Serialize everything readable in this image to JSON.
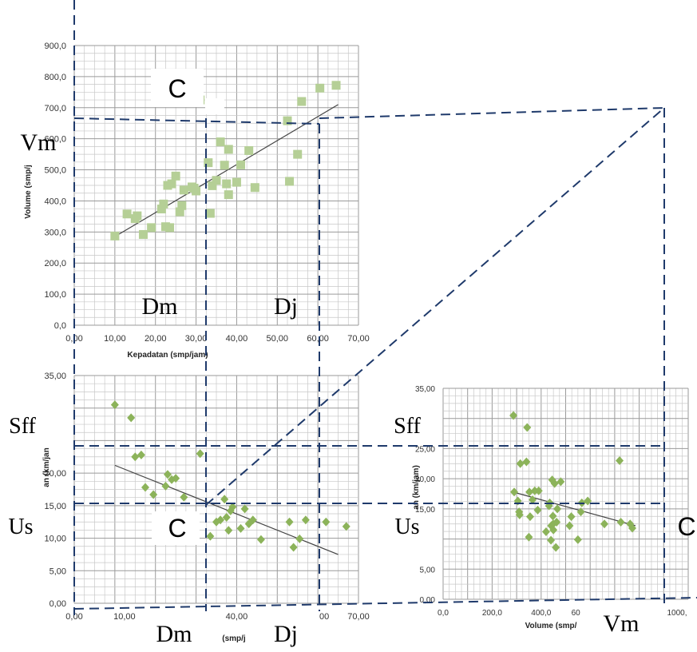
{
  "colors": {
    "grid": "#c8c8c8",
    "frame": "#9a9a9a",
    "guide": "#1f3a6b",
    "vol_marker": "#b5cf96",
    "speed_marker": "#8cb35a",
    "trend": "#444444",
    "label_bg": "#ffffff"
  },
  "chart_data": [
    {
      "type": "scatter",
      "name": "volume-density",
      "xlabel": "Kepadatan (smp/jam)",
      "ylabel": "Volume (smp/j",
      "xlim": [
        0,
        70
      ],
      "ylim": [
        0,
        900
      ],
      "xticks": [
        "0,00",
        "10,00",
        "20,00",
        "30,00",
        "40,00",
        "50,00",
        "60,00",
        "70,00"
      ],
      "yticks": [
        "0,0",
        "100,0",
        "200,0",
        "300,0",
        "400,0",
        "500,0",
        "600,0",
        "700,0",
        "800,0",
        "900,0"
      ],
      "trend": [
        [
          10,
          285
        ],
        [
          65,
          710
        ]
      ],
      "points": [
        [
          10,
          287
        ],
        [
          13,
          358
        ],
        [
          15,
          343
        ],
        [
          15.5,
          352
        ],
        [
          17,
          292
        ],
        [
          19,
          314
        ],
        [
          21.5,
          374
        ],
        [
          22,
          390
        ],
        [
          22.5,
          317
        ],
        [
          23,
          450
        ],
        [
          23.5,
          314
        ],
        [
          24,
          455
        ],
        [
          25,
          480
        ],
        [
          26,
          365
        ],
        [
          26.5,
          385
        ],
        [
          27,
          435
        ],
        [
          29,
          445
        ],
        [
          29.5,
          441
        ],
        [
          30,
          432
        ],
        [
          31,
          725
        ],
        [
          33,
          523
        ],
        [
          33.5,
          360
        ],
        [
          34,
          449
        ],
        [
          35,
          466
        ],
        [
          36,
          590
        ],
        [
          37,
          515
        ],
        [
          37.5,
          455
        ],
        [
          38,
          420
        ],
        [
          38,
          566
        ],
        [
          40,
          460
        ],
        [
          41,
          516
        ],
        [
          43,
          562
        ],
        [
          44.5,
          443
        ],
        [
          52.5,
          658
        ],
        [
          53,
          463
        ],
        [
          55,
          550
        ],
        [
          56,
          720
        ],
        [
          60.5,
          763
        ],
        [
          64.5,
          772
        ]
      ],
      "grid": true
    },
    {
      "type": "scatter",
      "name": "speed-density",
      "xlabel": "(smp/j",
      "ylabel": "an (km/jan",
      "xlim": [
        0,
        70
      ],
      "ylim": [
        0,
        35
      ],
      "xticks": [
        "0,00",
        "10,00",
        "40,00",
        "00",
        "70,00"
      ],
      "yticks": [
        "0,00",
        "5,00",
        "10,00",
        "15,00",
        "20,00",
        "35,00"
      ],
      "trend": [
        [
          10,
          21.2
        ],
        [
          65,
          7.5
        ]
      ],
      "points": [
        [
          10,
          30.5
        ],
        [
          14,
          28.5
        ],
        [
          15,
          22.5
        ],
        [
          16.5,
          22.8
        ],
        [
          17.5,
          17.8
        ],
        [
          19.5,
          16.7
        ],
        [
          22.5,
          18
        ],
        [
          23,
          19.8
        ],
        [
          24,
          19
        ],
        [
          25,
          19.2
        ],
        [
          27,
          16.3
        ],
        [
          31,
          23
        ],
        [
          33.5,
          10.3
        ],
        [
          35,
          12.5
        ],
        [
          36,
          12.8
        ],
        [
          37,
          16
        ],
        [
          37.5,
          13.2
        ],
        [
          38,
          11.2
        ],
        [
          38.5,
          14.2
        ],
        [
          39,
          14.8
        ],
        [
          41,
          11.5
        ],
        [
          42,
          14.5
        ],
        [
          43,
          12.2
        ],
        [
          44,
          12.8
        ],
        [
          46,
          9.8
        ],
        [
          53,
          12.5
        ],
        [
          54,
          8.6
        ],
        [
          55.5,
          9.9
        ],
        [
          57,
          12.8
        ],
        [
          62,
          12.5
        ],
        [
          67,
          11.8
        ]
      ],
      "grid": true
    },
    {
      "type": "scatter",
      "name": "speed-volume",
      "xlabel": "Volume (smp/",
      "ylabel": "an (km/jam)",
      "xlim": [
        0,
        1000
      ],
      "ylim": [
        0,
        35
      ],
      "xticks": [
        "0,0",
        "200,0",
        "400,0",
        "60",
        "1000,"
      ],
      "yticks": [
        "0,00",
        "5,00",
        "15,00",
        "20,00",
        "25,00",
        "35,00"
      ],
      "trend": [
        [
          285,
          17.8
        ],
        [
          785,
          12.2
        ]
      ],
      "points": [
        [
          287,
          30.5
        ],
        [
          290,
          17.8
        ],
        [
          305,
          16.3
        ],
        [
          310,
          14.5
        ],
        [
          312,
          14
        ],
        [
          315,
          22.5
        ],
        [
          340,
          22.8
        ],
        [
          343,
          28.5
        ],
        [
          350,
          10.3
        ],
        [
          352,
          17.8
        ],
        [
          355,
          13.7
        ],
        [
          365,
          16.5
        ],
        [
          374,
          18
        ],
        [
          386,
          14.8
        ],
        [
          390,
          18
        ],
        [
          420,
          11.2
        ],
        [
          432,
          15.5
        ],
        [
          435,
          16
        ],
        [
          440,
          9.8
        ],
        [
          441,
          12.2
        ],
        [
          445,
          19.8
        ],
        [
          448,
          13.8
        ],
        [
          449,
          12.5
        ],
        [
          450,
          11.5
        ],
        [
          455,
          19.2
        ],
        [
          460,
          8.6
        ],
        [
          463,
          12.8
        ],
        [
          466,
          15
        ],
        [
          480,
          19.5
        ],
        [
          516,
          12.2
        ],
        [
          523,
          13.7
        ],
        [
          550,
          9.9
        ],
        [
          562,
          14.5
        ],
        [
          566,
          16
        ],
        [
          590,
          16.3
        ],
        [
          658,
          12.5
        ],
        [
          720,
          23
        ],
        [
          725,
          12.8
        ],
        [
          763,
          12.5
        ],
        [
          772,
          11.8
        ]
      ],
      "grid": true
    }
  ],
  "annotations": {
    "c_label": "C",
    "vm": "Vm",
    "dm": "Dm",
    "dj": "Dj",
    "sff": "Sff",
    "us": "Us"
  }
}
